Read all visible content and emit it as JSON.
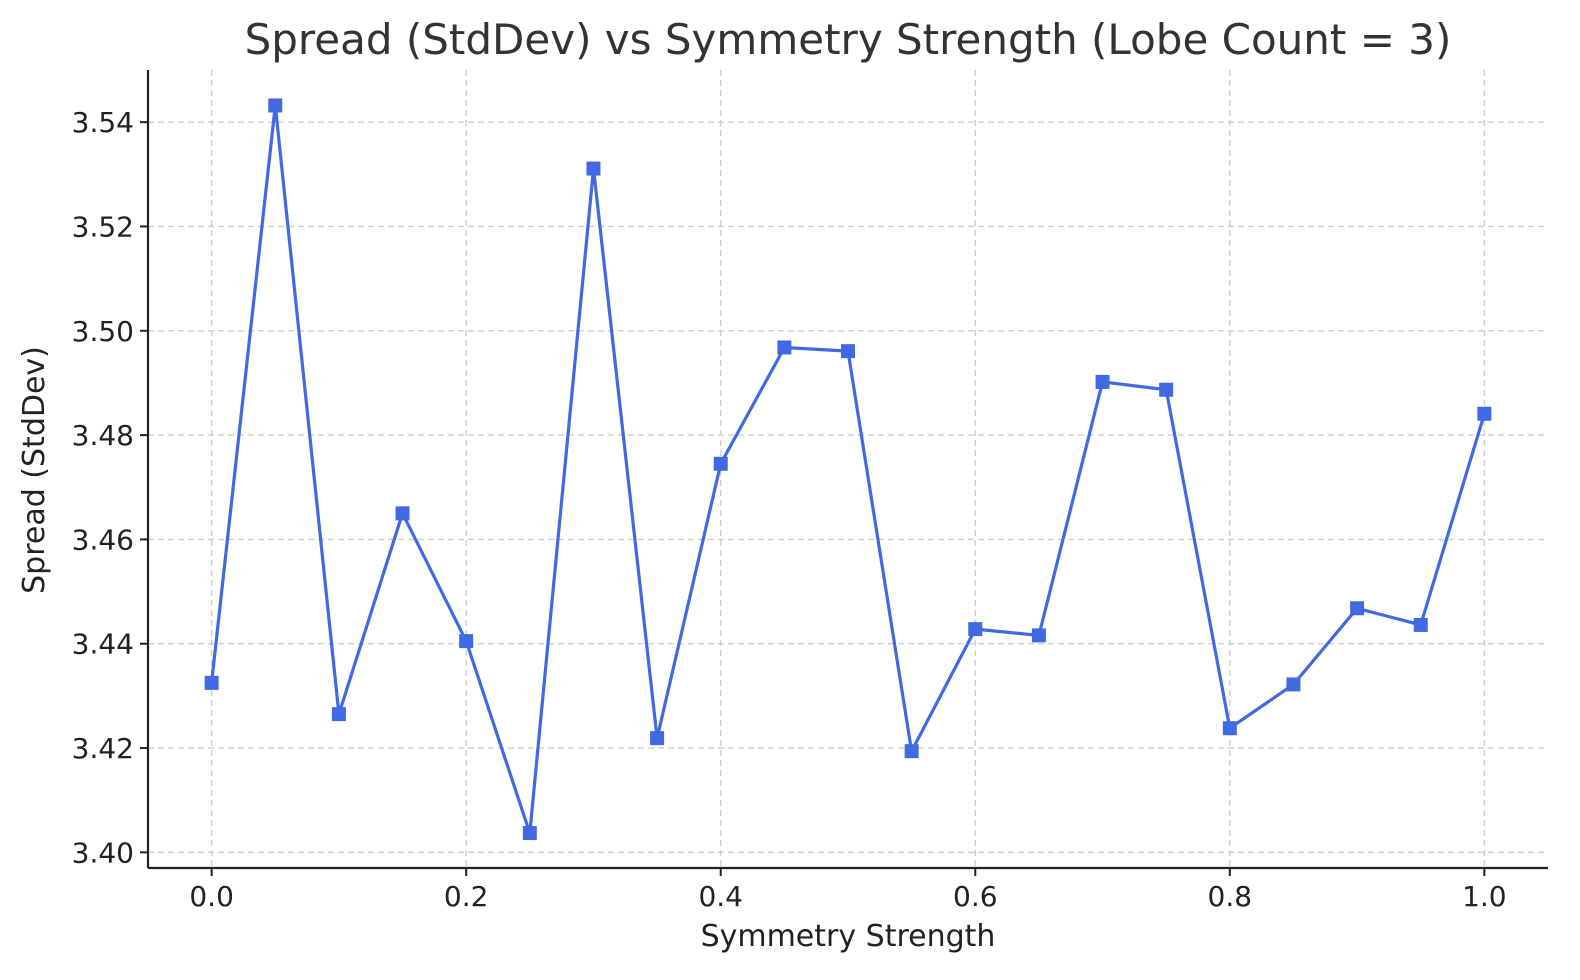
{
  "chart_data": {
    "type": "line",
    "title": "Spread (StdDev) vs Symmetry Strength (Lobe Count = 3)",
    "xlabel": "Symmetry Strength",
    "ylabel": "Spread (StdDev)",
    "xlim": [
      -0.05,
      1.05
    ],
    "ylim": [
      3.397,
      3.55
    ],
    "xticks": [
      0.0,
      0.2,
      0.4,
      0.6,
      0.8,
      1.0
    ],
    "xtick_labels": [
      "0.0",
      "0.2",
      "0.4",
      "0.6",
      "0.8",
      "1.0"
    ],
    "yticks": [
      3.4,
      3.42,
      3.44,
      3.46,
      3.48,
      3.5,
      3.52,
      3.54
    ],
    "ytick_labels": [
      "3.40",
      "3.42",
      "3.44",
      "3.46",
      "3.48",
      "3.50",
      "3.52",
      "3.54"
    ],
    "grid": true,
    "marker": "square",
    "color": "#4169e1",
    "series": [
      {
        "x": [
          0.0,
          0.05,
          0.1,
          0.15,
          0.2,
          0.25,
          0.3,
          0.35,
          0.4,
          0.45,
          0.5,
          0.55,
          0.6,
          0.65,
          0.7,
          0.75,
          0.8,
          0.85,
          0.9,
          0.95,
          1.0
        ],
        "values": [
          3.4325,
          3.5432,
          3.4265,
          3.465,
          3.4405,
          3.4037,
          3.5311,
          3.4219,
          3.4745,
          3.4968,
          3.4961,
          3.4194,
          3.4428,
          3.4416,
          3.4902,
          3.4887,
          3.4238,
          3.4322,
          3.4468,
          3.4436,
          3.4841
        ]
      }
    ]
  }
}
